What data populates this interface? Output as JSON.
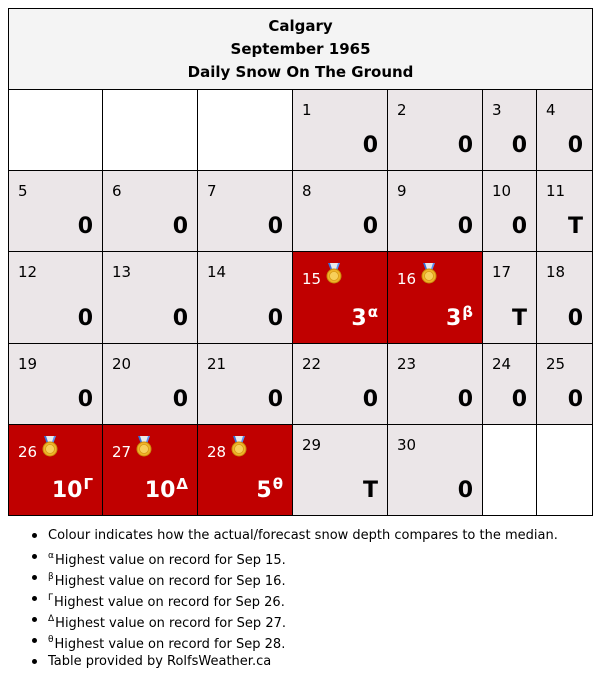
{
  "header": {
    "city": "Calgary",
    "month": "September 1965",
    "subtitle": "Daily Snow On The Ground"
  },
  "colors": {
    "record": "#c00000",
    "normal": "#ebe6e8",
    "empty": "#ffffff"
  },
  "weeks": [
    [
      {
        "day": ""
      },
      {
        "day": ""
      },
      {
        "day": ""
      },
      {
        "day": "1",
        "value": "0"
      },
      {
        "day": "2",
        "value": "0"
      },
      {
        "day": "3",
        "value": "0"
      },
      {
        "day": "4",
        "value": "0"
      }
    ],
    [
      {
        "day": "5",
        "value": "0"
      },
      {
        "day": "6",
        "value": "0"
      },
      {
        "day": "7",
        "value": "0"
      },
      {
        "day": "8",
        "value": "0"
      },
      {
        "day": "9",
        "value": "0"
      },
      {
        "day": "10",
        "value": "0"
      },
      {
        "day": "11",
        "value": "T"
      }
    ],
    [
      {
        "day": "12",
        "value": "0"
      },
      {
        "day": "13",
        "value": "0"
      },
      {
        "day": "14",
        "value": "0"
      },
      {
        "day": "15",
        "value": "3",
        "mark": "α",
        "record": true
      },
      {
        "day": "16",
        "value": "3",
        "mark": "β",
        "record": true
      },
      {
        "day": "17",
        "value": "T"
      },
      {
        "day": "18",
        "value": "0"
      }
    ],
    [
      {
        "day": "19",
        "value": "0"
      },
      {
        "day": "20",
        "value": "0"
      },
      {
        "day": "21",
        "value": "0"
      },
      {
        "day": "22",
        "value": "0"
      },
      {
        "day": "23",
        "value": "0"
      },
      {
        "day": "24",
        "value": "0"
      },
      {
        "day": "25",
        "value": "0"
      }
    ],
    [
      {
        "day": "26",
        "value": "10",
        "mark": "Γ",
        "record": true
      },
      {
        "day": "27",
        "value": "10",
        "mark": "Δ",
        "record": true
      },
      {
        "day": "28",
        "value": "5",
        "mark": "θ",
        "record": true
      },
      {
        "day": "29",
        "value": "T"
      },
      {
        "day": "30",
        "value": "0"
      },
      {
        "day": ""
      },
      {
        "day": ""
      }
    ]
  ],
  "notes": [
    {
      "mark": "",
      "text": "Colour indicates how the actual/forecast snow depth compares to the median."
    },
    {
      "mark": "α",
      "text": "Highest value on record for Sep 15."
    },
    {
      "mark": "β",
      "text": "Highest value on record for Sep 16."
    },
    {
      "mark": "Γ",
      "text": "Highest value on record for Sep 26."
    },
    {
      "mark": "Δ",
      "text": "Highest value on record for Sep 27."
    },
    {
      "mark": "θ",
      "text": "Highest value on record for Sep 28."
    },
    {
      "mark": "",
      "text": "Table provided by RolfsWeather.ca"
    }
  ]
}
